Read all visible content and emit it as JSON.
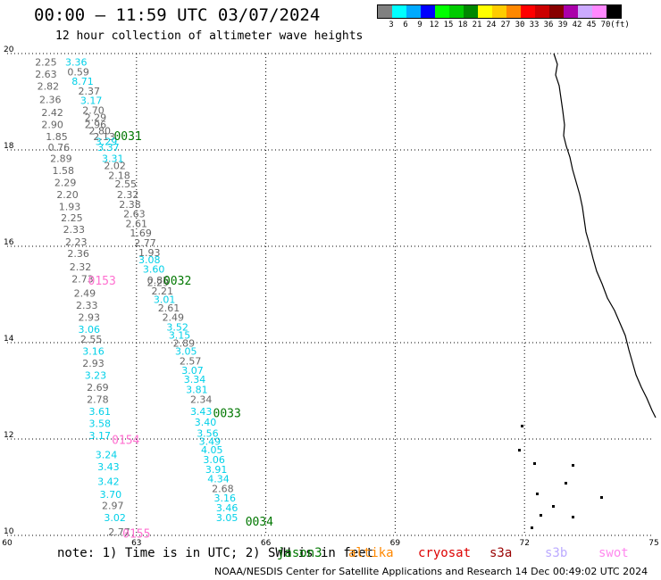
{
  "title": "00:00 – 11:59 UTC 03/07/2024",
  "subtitle": "12 hour collection of altimeter wave heights",
  "legend": {
    "colors": [
      "#808080",
      "#00ffff",
      "#00aaff",
      "#0000ff",
      "#00ff00",
      "#00cc00",
      "#008800",
      "#ffff00",
      "#ffcc00",
      "#ff8800",
      "#ff0000",
      "#cc0000",
      "#880000",
      "#aa00aa",
      "#ccaaff",
      "#ff88ff",
      "#000000"
    ],
    "labels": [
      "3",
      "6",
      "9",
      "12",
      "15",
      "18",
      "21",
      "24",
      "27",
      "30",
      "33",
      "36",
      "39",
      "42",
      "45",
      "70",
      "(ft)"
    ]
  },
  "axes": {
    "x_ticks": [
      "60",
      "63",
      "66",
      "69",
      "72",
      "75"
    ],
    "y_ticks": [
      "20",
      "18",
      "16",
      "14",
      "12",
      "10"
    ]
  },
  "chart_data": {
    "type": "scatter",
    "xlim": [
      60,
      75
    ],
    "ylim": [
      10,
      20
    ],
    "grid": true,
    "x_ticks": [
      60,
      63,
      66,
      69,
      72,
      75
    ],
    "y_ticks": [
      10,
      12,
      14,
      16,
      18,
      20
    ],
    "colors": {
      "gray": "#666666",
      "cyan": "#00d0e8",
      "pink": "#ff70d0",
      "green": "#007700"
    },
    "track_labels": [
      {
        "text": "0031",
        "x": 62.8,
        "y": 18.2,
        "color": "green"
      },
      {
        "text": "0032",
        "x": 63.95,
        "y": 15.2,
        "color": "green"
      },
      {
        "text": "0033",
        "x": 65.1,
        "y": 12.45,
        "color": "green"
      },
      {
        "text": "0034",
        "x": 65.85,
        "y": 10.2,
        "color": "green"
      },
      {
        "text": "0153",
        "x": 62.2,
        "y": 15.2,
        "color": "pink"
      },
      {
        "text": "0154",
        "x": 62.75,
        "y": 11.9,
        "color": "pink"
      },
      {
        "text": "0155",
        "x": 63.0,
        "y": 9.95,
        "color": "pink"
      }
    ],
    "points": [
      {
        "text": "2.25",
        "x": 60.9,
        "y": 19.75,
        "color": "gray"
      },
      {
        "text": "3.36",
        "x": 61.6,
        "y": 19.75,
        "color": "cyan"
      },
      {
        "text": "2.63",
        "x": 60.9,
        "y": 19.5,
        "color": "gray"
      },
      {
        "text": "0.59",
        "x": 61.65,
        "y": 19.55,
        "color": "gray"
      },
      {
        "text": "2.82",
        "x": 60.95,
        "y": 19.25,
        "color": "gray"
      },
      {
        "text": "8.71",
        "x": 61.75,
        "y": 19.35,
        "color": "cyan"
      },
      {
        "text": "2.37",
        "x": 61.9,
        "y": 19.15,
        "color": "gray"
      },
      {
        "text": "2.36",
        "x": 61.0,
        "y": 18.97,
        "color": "gray"
      },
      {
        "text": "3.17",
        "x": 61.95,
        "y": 18.95,
        "color": "cyan"
      },
      {
        "text": "2.42",
        "x": 61.05,
        "y": 18.7,
        "color": "gray"
      },
      {
        "text": "2.70",
        "x": 62.0,
        "y": 18.75,
        "color": "gray"
      },
      {
        "text": "2.29",
        "x": 62.05,
        "y": 18.6,
        "color": "gray"
      },
      {
        "text": "2.90",
        "x": 61.05,
        "y": 18.45,
        "color": "gray"
      },
      {
        "text": "2.96",
        "x": 62.05,
        "y": 18.45,
        "color": "gray"
      },
      {
        "text": "2.80",
        "x": 62.15,
        "y": 18.32,
        "color": "gray"
      },
      {
        "text": "1.85",
        "x": 61.15,
        "y": 18.2,
        "color": "gray"
      },
      {
        "text": "2.13",
        "x": 62.25,
        "y": 18.2,
        "color": "gray"
      },
      {
        "text": "3.29",
        "x": 62.3,
        "y": 18.1,
        "color": "cyan"
      },
      {
        "text": "0.76",
        "x": 61.2,
        "y": 17.98,
        "color": "gray"
      },
      {
        "text": "3.37",
        "x": 62.35,
        "y": 17.98,
        "color": "cyan"
      },
      {
        "text": "2.89",
        "x": 61.25,
        "y": 17.75,
        "color": "gray"
      },
      {
        "text": "3.31",
        "x": 62.45,
        "y": 17.75,
        "color": "cyan"
      },
      {
        "text": "1.58",
        "x": 61.3,
        "y": 17.5,
        "color": "gray"
      },
      {
        "text": "2.02",
        "x": 62.5,
        "y": 17.6,
        "color": "gray"
      },
      {
        "text": "2.18",
        "x": 62.6,
        "y": 17.4,
        "color": "gray"
      },
      {
        "text": "2.29",
        "x": 61.35,
        "y": 17.25,
        "color": "gray"
      },
      {
        "text": "2.55",
        "x": 62.75,
        "y": 17.22,
        "color": "gray"
      },
      {
        "text": "2.20",
        "x": 61.4,
        "y": 17.0,
        "color": "gray"
      },
      {
        "text": "2.32",
        "x": 62.8,
        "y": 17.0,
        "color": "gray"
      },
      {
        "text": "1.93",
        "x": 61.45,
        "y": 16.75,
        "color": "gray"
      },
      {
        "text": "2.38",
        "x": 62.85,
        "y": 16.8,
        "color": "gray"
      },
      {
        "text": "2.63",
        "x": 62.95,
        "y": 16.6,
        "color": "gray"
      },
      {
        "text": "2.25",
        "x": 61.5,
        "y": 16.52,
        "color": "gray"
      },
      {
        "text": "2.61",
        "x": 63.0,
        "y": 16.4,
        "color": "gray"
      },
      {
        "text": "2.33",
        "x": 61.55,
        "y": 16.28,
        "color": "gray"
      },
      {
        "text": "1.69",
        "x": 63.1,
        "y": 16.2,
        "color": "gray"
      },
      {
        "text": "2.23",
        "x": 61.6,
        "y": 16.02,
        "color": "gray"
      },
      {
        "text": "2.77",
        "x": 63.2,
        "y": 16.0,
        "color": "gray"
      },
      {
        "text": "2.36",
        "x": 61.65,
        "y": 15.78,
        "color": "gray"
      },
      {
        "text": "1.93",
        "x": 63.3,
        "y": 15.8,
        "color": "gray"
      },
      {
        "text": "3.08",
        "x": 63.3,
        "y": 15.65,
        "color": "cyan"
      },
      {
        "text": "2.32",
        "x": 61.7,
        "y": 15.5,
        "color": "gray"
      },
      {
        "text": "3.60",
        "x": 63.4,
        "y": 15.45,
        "color": "cyan"
      },
      {
        "text": "2.73",
        "x": 61.75,
        "y": 15.25,
        "color": "gray"
      },
      {
        "text": "0.85",
        "x": 63.5,
        "y": 15.22,
        "color": "gray"
      },
      {
        "text": "2.29",
        "x": 63.5,
        "y": 15.18,
        "color": "gray"
      },
      {
        "text": "2.21",
        "x": 63.6,
        "y": 15.0,
        "color": "gray"
      },
      {
        "text": "2.49",
        "x": 61.8,
        "y": 14.95,
        "color": "gray"
      },
      {
        "text": "3.01",
        "x": 63.65,
        "y": 14.82,
        "color": "cyan"
      },
      {
        "text": "2.33",
        "x": 61.85,
        "y": 14.7,
        "color": "gray"
      },
      {
        "text": "2.61",
        "x": 63.75,
        "y": 14.65,
        "color": "gray"
      },
      {
        "text": "2.93",
        "x": 61.9,
        "y": 14.45,
        "color": "gray"
      },
      {
        "text": "2.49",
        "x": 63.85,
        "y": 14.45,
        "color": "gray"
      },
      {
        "text": "3.06",
        "x": 61.9,
        "y": 14.2,
        "color": "cyan"
      },
      {
        "text": "3.52",
        "x": 63.95,
        "y": 14.25,
        "color": "cyan"
      },
      {
        "text": "3.15",
        "x": 64.0,
        "y": 14.08,
        "color": "cyan"
      },
      {
        "text": "2.55",
        "x": 61.95,
        "y": 14.0,
        "color": "gray"
      },
      {
        "text": "2.89",
        "x": 64.1,
        "y": 13.92,
        "color": "gray"
      },
      {
        "text": "3.16",
        "x": 62.0,
        "y": 13.75,
        "color": "cyan"
      },
      {
        "text": "3.05",
        "x": 64.15,
        "y": 13.75,
        "color": "cyan"
      },
      {
        "text": "2.93",
        "x": 62.0,
        "y": 13.5,
        "color": "gray"
      },
      {
        "text": "2.57",
        "x": 64.25,
        "y": 13.55,
        "color": "gray"
      },
      {
        "text": "3.07",
        "x": 64.3,
        "y": 13.35,
        "color": "cyan"
      },
      {
        "text": "3.23",
        "x": 62.05,
        "y": 13.25,
        "color": "cyan"
      },
      {
        "text": "3.34",
        "x": 64.35,
        "y": 13.17,
        "color": "cyan"
      },
      {
        "text": "2.69",
        "x": 62.1,
        "y": 13.0,
        "color": "gray"
      },
      {
        "text": "3.81",
        "x": 64.4,
        "y": 12.95,
        "color": "cyan"
      },
      {
        "text": "2.78",
        "x": 62.1,
        "y": 12.75,
        "color": "gray"
      },
      {
        "text": "2.34",
        "x": 64.5,
        "y": 12.75,
        "color": "gray"
      },
      {
        "text": "3.61",
        "x": 62.15,
        "y": 12.5,
        "color": "cyan"
      },
      {
        "text": "3.43",
        "x": 64.5,
        "y": 12.5,
        "color": "cyan"
      },
      {
        "text": "3.58",
        "x": 62.15,
        "y": 12.25,
        "color": "cyan"
      },
      {
        "text": "3.40",
        "x": 64.6,
        "y": 12.28,
        "color": "cyan"
      },
      {
        "text": "3.17",
        "x": 62.15,
        "y": 12.0,
        "color": "cyan"
      },
      {
        "text": "3.56",
        "x": 64.65,
        "y": 12.05,
        "color": "cyan"
      },
      {
        "text": "3.49",
        "x": 64.7,
        "y": 11.88,
        "color": "cyan"
      },
      {
        "text": "4.05",
        "x": 64.75,
        "y": 11.7,
        "color": "cyan"
      },
      {
        "text": "3.24",
        "x": 62.3,
        "y": 11.6,
        "color": "cyan"
      },
      {
        "text": "3.06",
        "x": 64.8,
        "y": 11.5,
        "color": "cyan"
      },
      {
        "text": "3.43",
        "x": 62.35,
        "y": 11.35,
        "color": "cyan"
      },
      {
        "text": "3.91",
        "x": 64.85,
        "y": 11.3,
        "color": "cyan"
      },
      {
        "text": "3.42",
        "x": 62.35,
        "y": 11.05,
        "color": "cyan"
      },
      {
        "text": "4.34",
        "x": 64.9,
        "y": 11.1,
        "color": "cyan"
      },
      {
        "text": "3.70",
        "x": 62.4,
        "y": 10.78,
        "color": "cyan"
      },
      {
        "text": "2.68",
        "x": 65.0,
        "y": 10.9,
        "color": "gray"
      },
      {
        "text": "2.97",
        "x": 62.45,
        "y": 10.55,
        "color": "gray"
      },
      {
        "text": "3.16",
        "x": 65.05,
        "y": 10.7,
        "color": "cyan"
      },
      {
        "text": "3.02",
        "x": 62.5,
        "y": 10.3,
        "color": "cyan"
      },
      {
        "text": "3.46",
        "x": 65.1,
        "y": 10.5,
        "color": "cyan"
      },
      {
        "text": "3.05",
        "x": 65.1,
        "y": 10.3,
        "color": "cyan"
      },
      {
        "text": "2.77",
        "x": 62.6,
        "y": 10.0,
        "color": "gray"
      }
    ]
  },
  "note": "note: 1) Time is in UTC; 2) SWH is in feet",
  "satellites": [
    {
      "name": "jason3",
      "color": "#007700"
    },
    {
      "name": "altika",
      "color": "#ff8800"
    },
    {
      "name": "cryosat",
      "color": "#dd0000"
    },
    {
      "name": "s3a",
      "color": "#990000"
    },
    {
      "name": "s3b",
      "color": "#bbaaff"
    },
    {
      "name": "swot",
      "color": "#ff88ee"
    }
  ],
  "footer": "NOAA/NESDIS Center for Satellite Applications and Research   14 Dec 00:49:02 UTC 2024"
}
